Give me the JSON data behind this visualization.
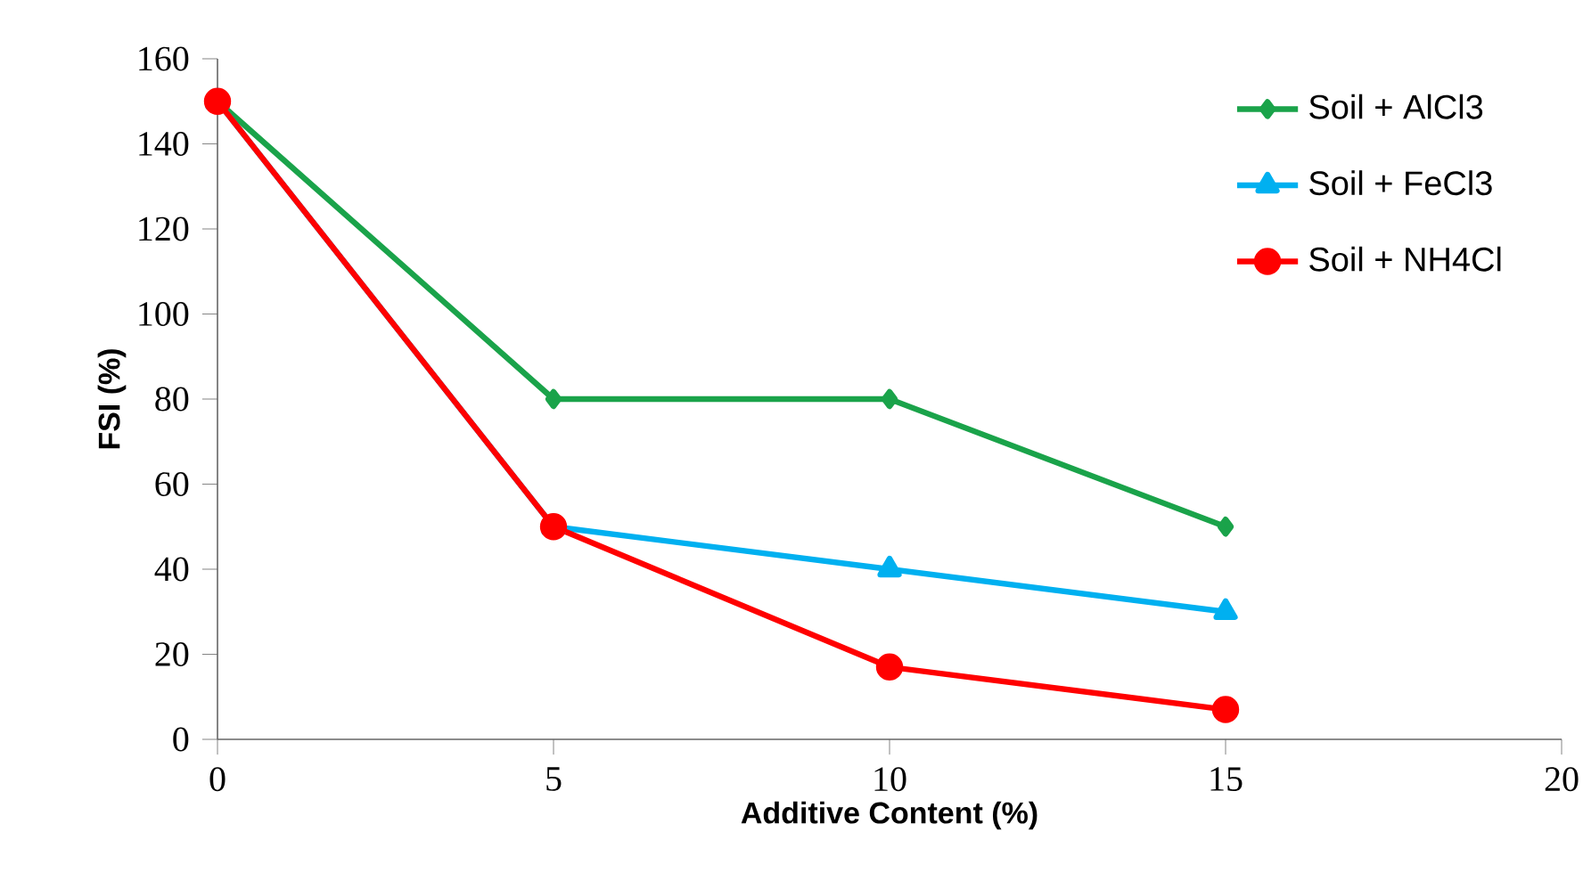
{
  "chart_data": {
    "type": "line",
    "xlabel": "Additive Content (%)",
    "ylabel": "FSI (%)",
    "x": [
      0,
      5,
      10,
      15
    ],
    "series": [
      {
        "name": "Soil + AlCl3",
        "color": "#1aa34a",
        "values": [
          150,
          80,
          80,
          50
        ],
        "marker": "diamond"
      },
      {
        "name": "Soil + FeCl3",
        "color": "#00b0f0",
        "values": [
          150,
          50,
          40,
          30
        ],
        "marker": "triangle"
      },
      {
        "name": "Soil + NH4Cl",
        "color": "#ff0000",
        "values": [
          150,
          50,
          17,
          7
        ],
        "marker": "circle"
      }
    ],
    "xlim": [
      0,
      20
    ],
    "xticks": [
      0,
      5,
      10,
      15,
      20
    ],
    "ylim": [
      0,
      160
    ],
    "yticks": [
      0,
      20,
      40,
      60,
      80,
      100,
      120,
      140,
      160
    ],
    "legend": "top right",
    "grid": false,
    "line_style": "solid"
  }
}
